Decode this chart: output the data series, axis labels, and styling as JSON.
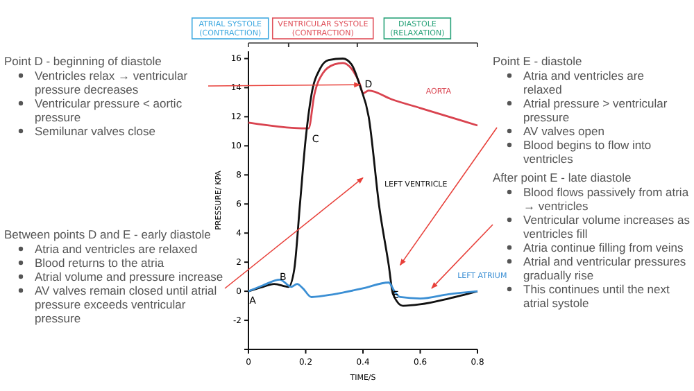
{
  "chart_data": {
    "type": "line",
    "xlabel": "TIME/S",
    "ylabel": "PRESSURE/ KPA",
    "xlim": [
      0,
      0.8
    ],
    "xticks": [
      0,
      0.2,
      0.4,
      0.6,
      0.8
    ],
    "ylim": [
      -4,
      16.5
    ],
    "yticks": [
      {
        "value": -4,
        "label": null
      },
      -2,
      0,
      2,
      4,
      6,
      8,
      10,
      12,
      14,
      16
    ],
    "grid": false,
    "marker": "none",
    "line_style": "solid",
    "series": [
      {
        "name": "AORTA",
        "color": "#d9434f",
        "x": [
          0,
          0.21,
          0.23,
          0.26,
          0.3,
          0.33,
          0.36,
          0.39,
          0.4,
          0.42,
          0.5,
          0.6,
          0.7,
          0.8
        ],
        "values": [
          11.6,
          11.2,
          13.5,
          15,
          15.6,
          15.7,
          15.3,
          14.2,
          13.6,
          13.8,
          13.2,
          12.6,
          12,
          11.4
        ]
      },
      {
        "name": "LEFT VENTRICLE",
        "color": "#111111",
        "x": [
          0,
          0.05,
          0.09,
          0.14,
          0.16,
          0.18,
          0.2,
          0.22,
          0.25,
          0.28,
          0.33,
          0.36,
          0.39,
          0.42,
          0.457,
          0.49,
          0.505,
          0.54,
          0.6,
          0.7,
          0.8
        ],
        "values": [
          0,
          0.3,
          0.5,
          0.3,
          1.5,
          6,
          10.5,
          13.5,
          15.3,
          15.9,
          16,
          15.6,
          14.1,
          12,
          5.8,
          1.8,
          -0.2,
          -1,
          -0.9,
          -0.5,
          0
        ]
      },
      {
        "name": "LEFT ATRIUM",
        "color": "#3b8fd4",
        "x": [
          0,
          0.05,
          0.11,
          0.15,
          0.17,
          0.19,
          0.22,
          0.3,
          0.4,
          0.49,
          0.51,
          0.53,
          0.6,
          0.7,
          0.8
        ],
        "values": [
          0,
          0.4,
          0.8,
          0.3,
          0.5,
          0.2,
          -0.4,
          -0.2,
          0.2,
          0.6,
          0,
          -0.4,
          -0.5,
          -0.2,
          0
        ]
      }
    ],
    "annotations": [
      "ATRIAL SYSTOLE (CONTRACTION)",
      "VENTRICULAR SYSTOLE (CONTRACTION)",
      "DIASTOLE (RELAXATION)",
      {
        "text": "A",
        "x": 0,
        "y": 0
      },
      {
        "text": "B",
        "x": 0.14,
        "y": 0.3
      },
      {
        "text": "C",
        "x": 0.21,
        "y": 11.2
      },
      {
        "text": "D",
        "x": 0.39,
        "y": 14.2
      },
      {
        "text": "E",
        "x": 0.5,
        "y": 0.5
      },
      "Point D - beginning of diastole\nVentricles relax → ventricular pressure decreases\nVentricular pressure < aortic pressure\nSemilunar valves close",
      "Between points D and E - early diastole\nAtria and ventricles are relaxed\nBlood returns to the atria\nAtrial volume and pressure increase\nAV valves remain closed until atrial pressure exceeds ventricular pressure",
      "Point E - diastole\nAtria and ventricles are relaxed\nAtrial pressure > ventricular pressure\nAV valves open\nBlood begins to flow into ventricles",
      "After point E - late diastole\nBlood flows passively from atria → ventricles\nVentricular volume increases as ventricles fill\nAtria continue filling from veins\nAtrial and ventricular pressures gradually rise\nThis continues until the next atrial systole"
    ]
  }
}
